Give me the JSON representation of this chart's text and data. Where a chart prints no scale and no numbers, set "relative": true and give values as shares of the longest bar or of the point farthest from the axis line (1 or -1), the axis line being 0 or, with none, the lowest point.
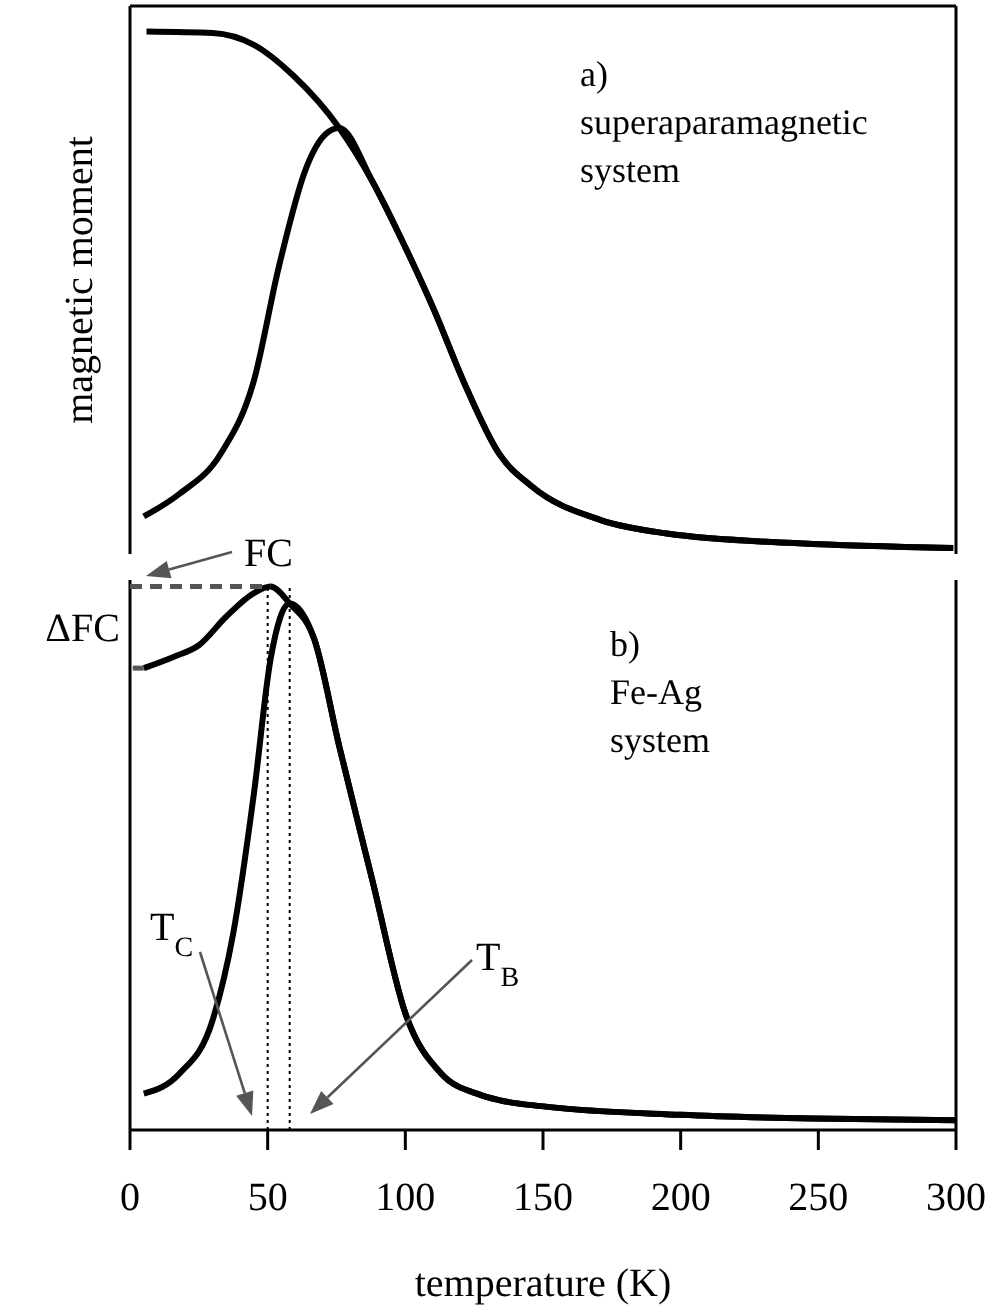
{
  "chart_data": [
    {
      "type": "line",
      "ylabel": "magnetic moment",
      "relative": true,
      "xlim": [
        0,
        300
      ],
      "tick_labels": false,
      "annotations": [
        "a)\nsuperaparamagnetic\nsystem"
      ],
      "series": [
        {
          "color": "#000000",
          "x": [
            6,
            30,
            45,
            59,
            76,
            88,
            100,
            110,
            122,
            134,
            146,
            171,
            195,
            243,
            299
          ],
          "values": [
            1,
            0.997,
            0.974,
            0.916,
            0.813,
            0.71,
            0.582,
            0.466,
            0.312,
            0.183,
            0.119,
            0.054,
            0.028,
            0.009,
            0
          ]
        },
        {
          "color": "#000000",
          "x": [
            5,
            18,
            33,
            45,
            54,
            64,
            71,
            76,
            88,
            100,
            110,
            122,
            134,
            146,
            171,
            195,
            243,
            299
          ],
          "values": [
            0.061,
            0.105,
            0.183,
            0.324,
            0.543,
            0.736,
            0.801,
            0.813,
            0.71,
            0.582,
            0.466,
            0.312,
            0.183,
            0.119,
            0.054,
            0.028,
            0.009,
            0
          ]
        }
      ]
    },
    {
      "type": "line",
      "xlabel": "temperature (K)",
      "relative": true,
      "xlim": [
        0,
        300
      ],
      "xticks": [
        0,
        50,
        100,
        150,
        200,
        250,
        300
      ],
      "tick_labels": "x",
      "annotations": [
        "b)\nFe-Ag\nsystem",
        "ΔFC",
        "FC",
        "T$_{C}$",
        "T$_{B}$"
      ],
      "ref_lines": [
        {
          "axis": "x",
          "value": 50,
          "line_style": "dotted"
        },
        {
          "axis": "x",
          "value": 58,
          "line_style": "dotted"
        }
      ],
      "series": [
        {
          "color": "#000000",
          "x": [
            5,
            16,
            25,
            35,
            45,
            51,
            58,
            67,
            76,
            88,
            100,
            113,
            127,
            134,
            151,
            200,
            248,
            300
          ],
          "values": [
            0.85,
            0.871,
            0.892,
            0.945,
            0.988,
            1,
            0.969,
            0.902,
            0.706,
            0.46,
            0.215,
            0.104,
            0.065,
            0.055,
            0.043,
            0.028,
            0.021,
            0.018
          ]
        },
        {
          "color": "#000000",
          "x": [
            5,
            18,
            30,
            37.5,
            45,
            51,
            58,
            67,
            76,
            88,
            100,
            113,
            127,
            134,
            151,
            200,
            248,
            300
          ],
          "values": [
            0.067,
            0.104,
            0.202,
            0.362,
            0.619,
            0.865,
            0.969,
            0.902,
            0.706,
            0.46,
            0.215,
            0.104,
            0.065,
            0.055,
            0.043,
            0.028,
            0.021,
            0.018
          ]
        },
        {
          "color": "#555555",
          "line_style": "dashed",
          "x": [
            0,
            51
          ],
          "values": [
            1,
            1
          ]
        },
        {
          "color": "#555555",
          "line_style": "dashed",
          "x": [
            1,
            5
          ],
          "values": [
            0.85,
            0.85
          ]
        }
      ]
    }
  ]
}
